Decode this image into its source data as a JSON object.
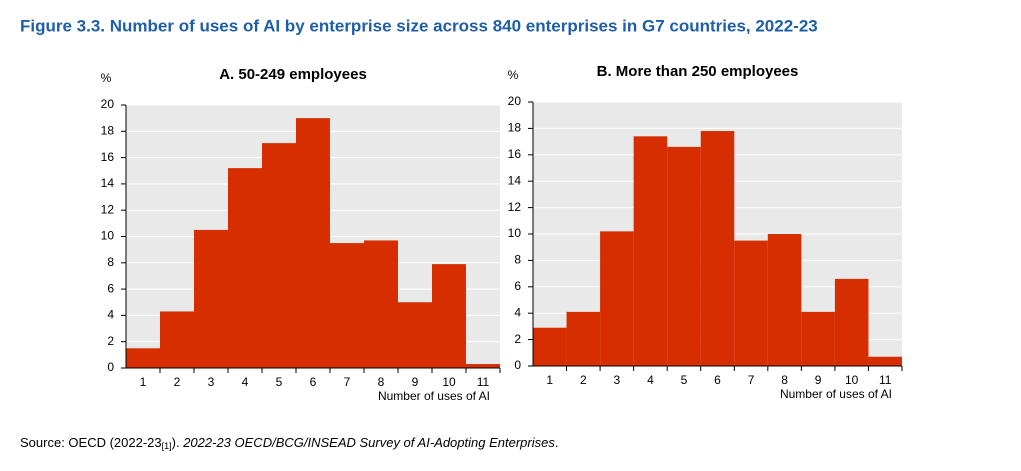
{
  "title": "Figure 3.3. Number of uses of AI by enterprise size across 840 enterprises in G7 countries, 2022-23",
  "source": {
    "prefix": "Source: OECD (2022-23",
    "ref": "[1]",
    "mid": "). ",
    "italic": "2022-23 OECD/BCG/INSEAD Survey of AI-Adopting Enterprises",
    "end": "."
  },
  "chart_data": [
    {
      "type": "bar",
      "title": "A. 50-249 employees",
      "y_label": "%",
      "x_label": "Number of uses of AI",
      "categories": [
        "1",
        "2",
        "3",
        "4",
        "5",
        "6",
        "7",
        "8",
        "9",
        "10",
        "11"
      ],
      "values": [
        1.5,
        4.3,
        10.5,
        15.2,
        17.1,
        19.0,
        9.5,
        9.7,
        5.0,
        7.9,
        0.3
      ],
      "color": "#d62e00",
      "ylim": [
        0,
        20
      ],
      "yticks": [
        0,
        2,
        4,
        6,
        8,
        10,
        12,
        14,
        16,
        18,
        20
      ],
      "grid": true
    },
    {
      "type": "bar",
      "title": "B. More than 250 employees",
      "y_label": "%",
      "x_label": "Number of uses of AI",
      "categories": [
        "1",
        "2",
        "3",
        "4",
        "5",
        "6",
        "7",
        "8",
        "9",
        "10",
        "11"
      ],
      "values": [
        2.9,
        4.1,
        10.2,
        17.4,
        16.6,
        17.8,
        9.5,
        10.0,
        4.1,
        6.6,
        0.7
      ],
      "color": "#d62e00",
      "ylim": [
        0,
        20
      ],
      "yticks": [
        0,
        2,
        4,
        6,
        8,
        10,
        12,
        14,
        16,
        18,
        20
      ],
      "grid": true
    }
  ]
}
